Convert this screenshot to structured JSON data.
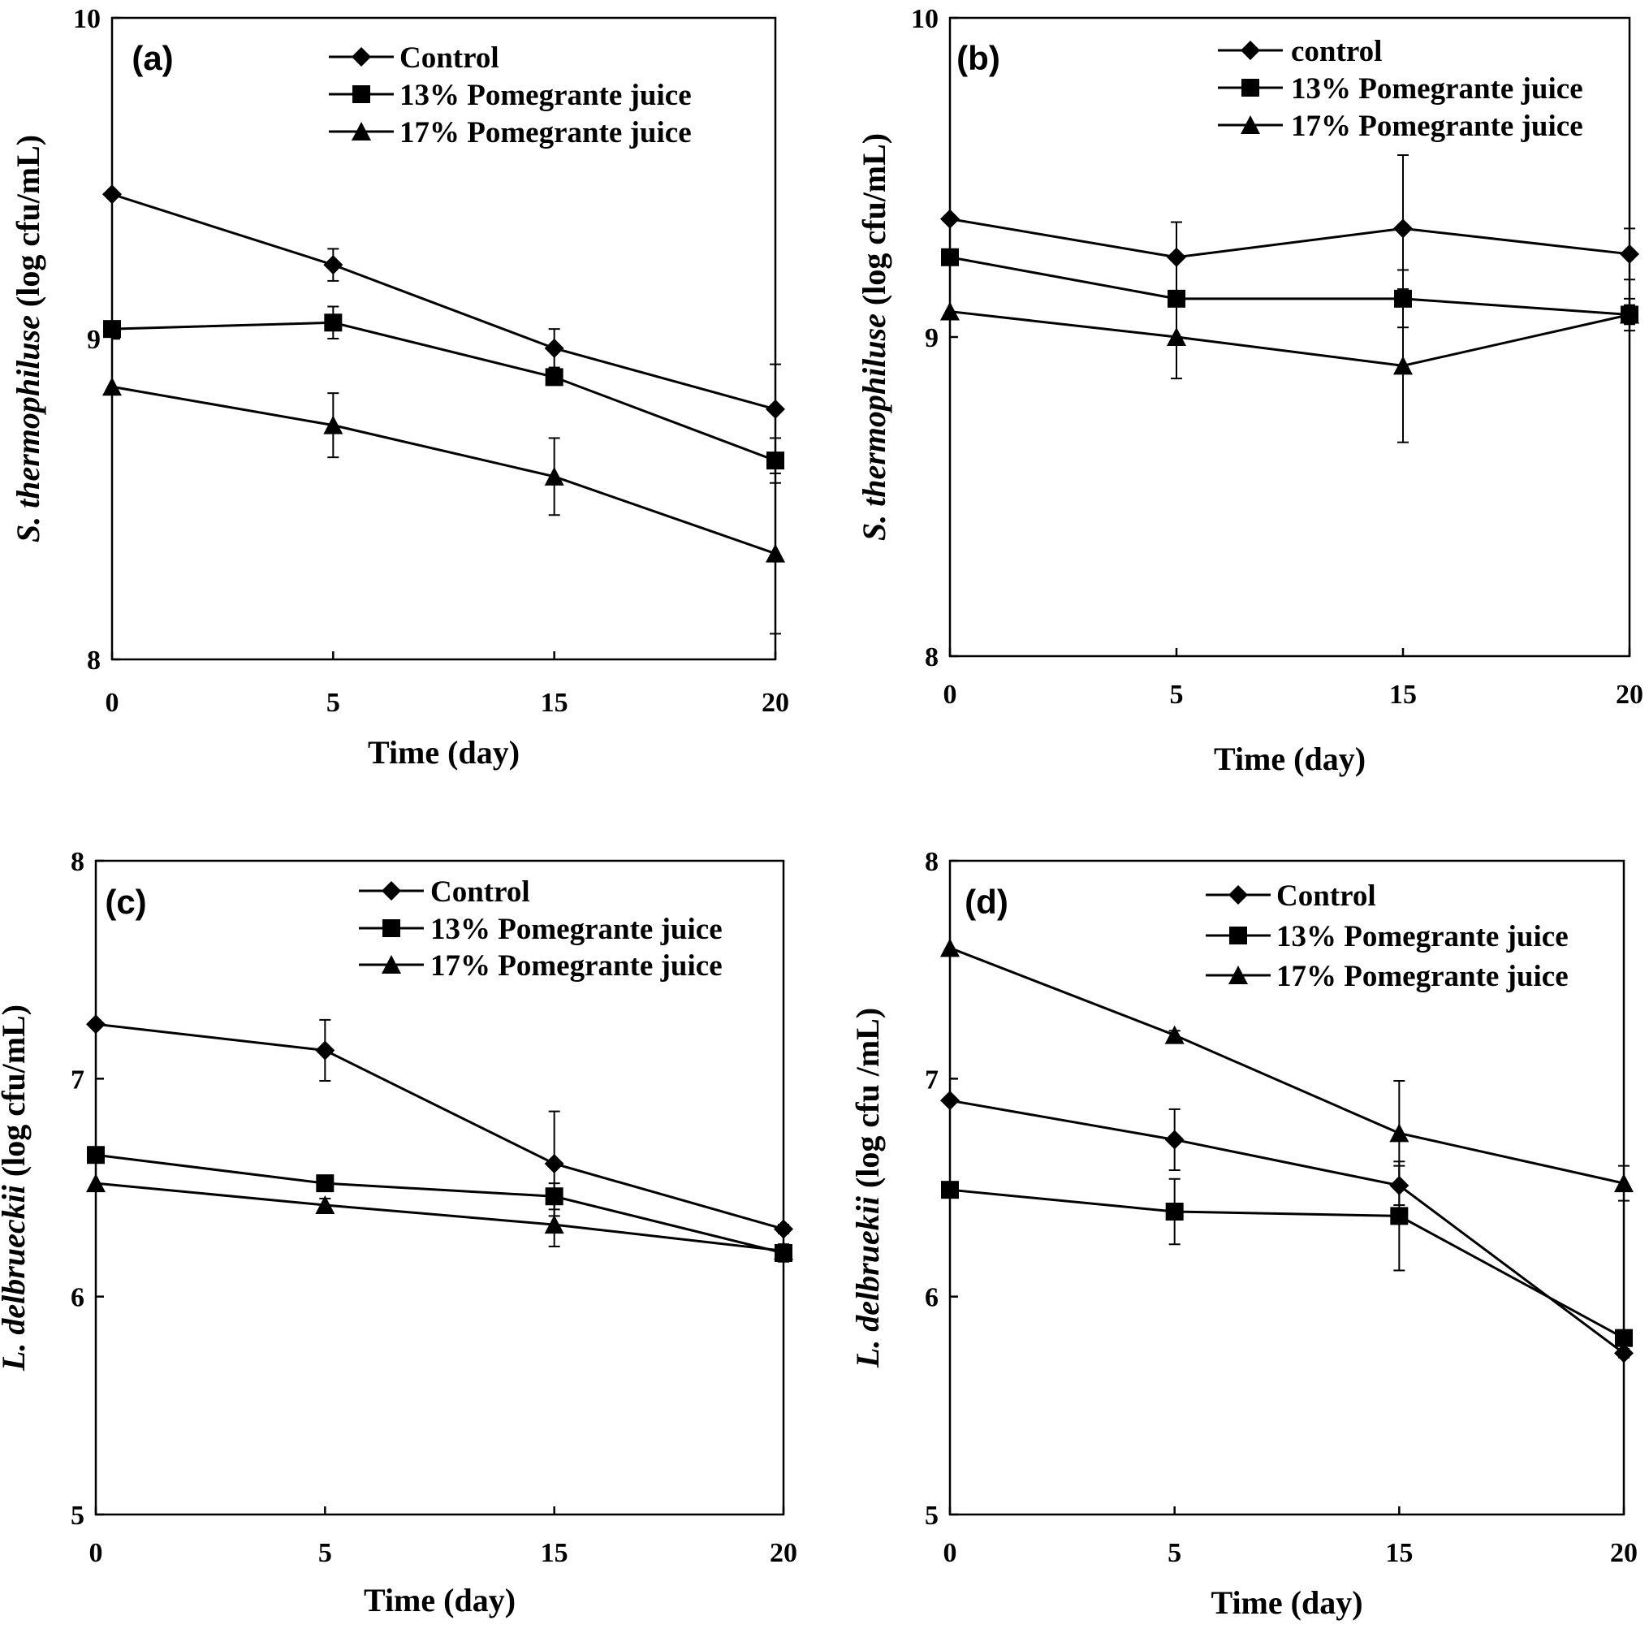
{
  "chart_data": [
    {
      "type": "line",
      "panel_label": "(a)",
      "xlabel": "Time (day)",
      "ylabel_italic": "S. thermophiluse",
      "ylabel_rest": " (log cfu/mL)",
      "categories": [
        "0",
        "5",
        "15",
        "20"
      ],
      "ylim": [
        8,
        10
      ],
      "yticks": [
        "8",
        "9",
        "10"
      ],
      "legend_placement": "top-right",
      "series": [
        {
          "name": "Control",
          "marker": "diamond",
          "values": [
            9.45,
            9.23,
            8.97,
            8.78
          ],
          "errors": [
            0,
            0.05,
            0.06,
            0.14
          ]
        },
        {
          "name": "13% Pomegrante juice",
          "marker": "square",
          "values": [
            9.03,
            9.05,
            8.88,
            8.62
          ],
          "errors": [
            0,
            0.05,
            0.02,
            0.07
          ]
        },
        {
          "name": "17% Pomegrante juice",
          "marker": "triangle",
          "values": [
            8.85,
            8.73,
            8.57,
            8.33
          ],
          "errors": [
            0,
            0.1,
            0.12,
            0.25
          ]
        }
      ]
    },
    {
      "type": "line",
      "panel_label": "(b)",
      "xlabel": "Time (day)",
      "ylabel_italic": "S. thermophiluse",
      "ylabel_rest": " (log cfu/mL)",
      "categories": [
        "0",
        "5",
        "15",
        "20"
      ],
      "ylim": [
        8,
        10
      ],
      "yticks": [
        "8",
        "9",
        "10"
      ],
      "legend_placement": "top-right",
      "series": [
        {
          "name": "control",
          "marker": "diamond",
          "values": [
            9.37,
            9.25,
            9.34,
            9.26
          ],
          "errors": [
            0,
            0.11,
            0.23,
            0.08
          ]
        },
        {
          "name": "13% Pomegrante juice",
          "marker": "square",
          "values": [
            9.25,
            9.12,
            9.12,
            9.07
          ],
          "errors": [
            0,
            0.12,
            0.09,
            0.05
          ]
        },
        {
          "name": "17% Pomegrante juice",
          "marker": "triangle",
          "values": [
            9.08,
            9.0,
            8.91,
            9.07
          ],
          "errors": [
            0,
            0.13,
            0.24,
            0.03
          ]
        }
      ]
    },
    {
      "type": "line",
      "panel_label": "(c)",
      "xlabel": "Time (day)",
      "ylabel_italic": "L. delbrueckii",
      "ylabel_rest": " (log cfu/mL)",
      "categories": [
        "0",
        "5",
        "15",
        "20"
      ],
      "ylim": [
        5,
        8
      ],
      "yticks": [
        "5",
        "6",
        "7",
        "8"
      ],
      "legend_placement": "top-right",
      "series": [
        {
          "name": "Control",
          "marker": "diamond",
          "values": [
            7.25,
            7.13,
            6.61,
            6.31
          ],
          "errors": [
            0,
            0.14,
            0.24,
            0.02
          ]
        },
        {
          "name": "13% Pomegrante juice",
          "marker": "square",
          "values": [
            6.65,
            6.52,
            6.46,
            6.2
          ],
          "errors": [
            0,
            0.03,
            0.06,
            0.04
          ]
        },
        {
          "name": "17% Pomegrante juice",
          "marker": "triangle",
          "values": [
            6.52,
            6.42,
            6.33,
            6.21
          ],
          "errors": [
            0,
            0.03,
            0.1,
            0.03
          ]
        }
      ]
    },
    {
      "type": "line",
      "panel_label": "(d)",
      "xlabel": "Time (day)",
      "ylabel_italic": "L. delbruekii",
      "ylabel_rest": " (log cfu /mL)",
      "categories": [
        "0",
        "5",
        "15",
        "20"
      ],
      "ylim": [
        5,
        8
      ],
      "yticks": [
        "5",
        "6",
        "7",
        "8"
      ],
      "legend_placement": "top-right",
      "series": [
        {
          "name": "Control",
          "marker": "diamond",
          "values": [
            6.9,
            6.72,
            6.51,
            5.74
          ],
          "errors": [
            0,
            0.14,
            0.09,
            0.02
          ]
        },
        {
          "name": "13% Pomegrante juice",
          "marker": "square",
          "values": [
            6.49,
            6.39,
            6.37,
            5.81
          ],
          "errors": [
            0,
            0.15,
            0.25,
            0.03
          ]
        },
        {
          "name": "17% Pomegrante juice",
          "marker": "triangle",
          "values": [
            7.6,
            7.2,
            6.75,
            6.52
          ],
          "errors": [
            0,
            0.02,
            0.24,
            0.08
          ]
        }
      ]
    }
  ]
}
